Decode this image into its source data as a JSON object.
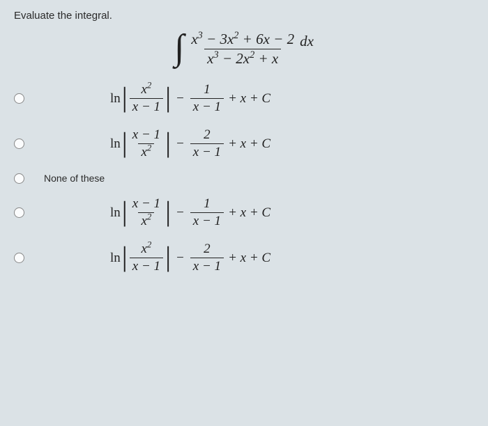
{
  "prompt": "Evaluate the integral.",
  "integral": {
    "numerator": "x³ − 3x² + 6x − 2",
    "denominator": "x³ − 2x² + x",
    "dx": "dx"
  },
  "none_label": "None of these",
  "options": {
    "a": {
      "ln": "ln",
      "abs_num": "x²",
      "abs_den": "x − 1",
      "minus": "−",
      "f2_num": "1",
      "f2_den": "x − 1",
      "tail": "+ x + C"
    },
    "b": {
      "ln": "ln",
      "abs_num": "x − 1",
      "abs_den": "x²",
      "minus": "−",
      "f2_num": "2",
      "f2_den": "x − 1",
      "tail": "+ x + C"
    },
    "d": {
      "ln": "ln",
      "abs_num": "x − 1",
      "abs_den": "x²",
      "minus": "−",
      "f2_num": "1",
      "f2_den": "x − 1",
      "tail": "+ x + C"
    },
    "e": {
      "ln": "ln",
      "abs_num": "x²",
      "abs_den": "x − 1",
      "minus": "−",
      "f2_num": "2",
      "f2_den": "x − 1",
      "tail": "+ x + C"
    }
  },
  "colors": {
    "bg": "#dbe2e6",
    "text": "#222"
  }
}
